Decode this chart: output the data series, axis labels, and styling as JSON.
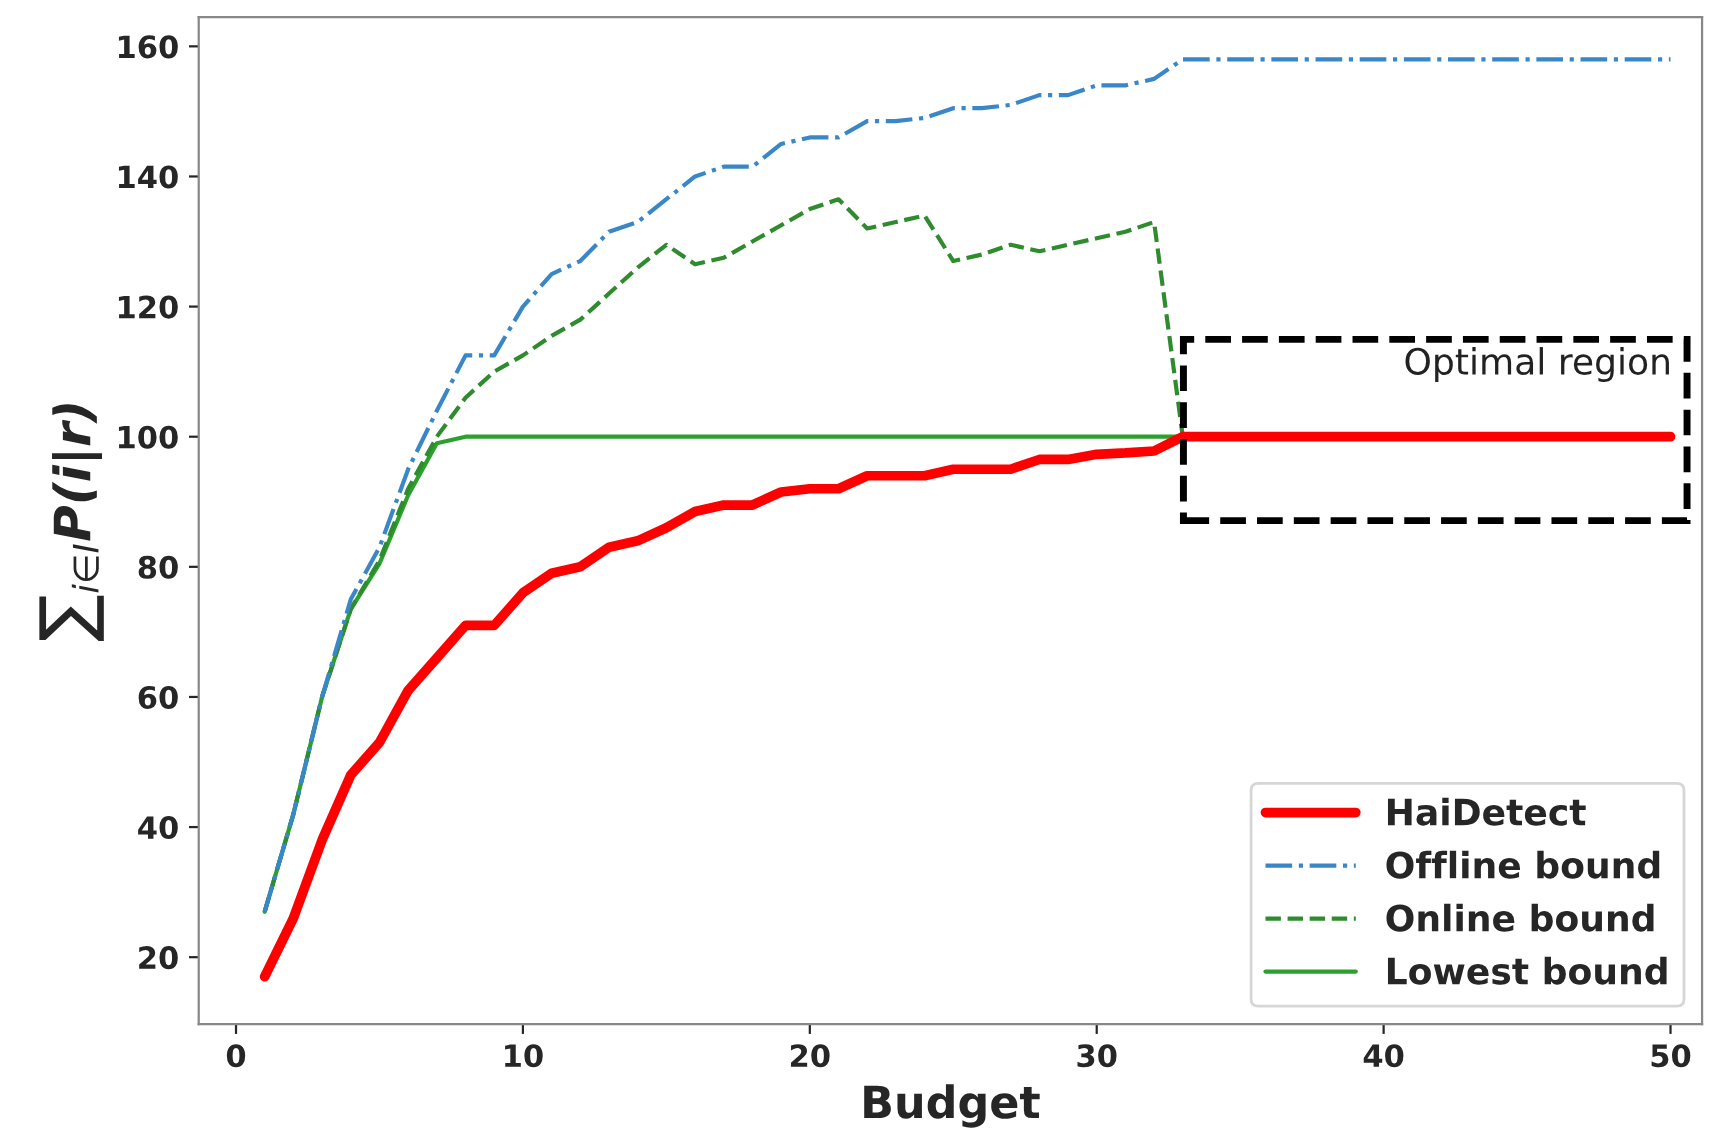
{
  "chart_data": {
    "type": "line",
    "xlabel": "Budget",
    "ylabel": "∑$_{i∈I}$P(i|r)",
    "x": [
      1,
      2,
      3,
      4,
      5,
      6,
      7,
      8,
      9,
      10,
      11,
      12,
      13,
      14,
      15,
      16,
      17,
      18,
      19,
      20,
      21,
      22,
      23,
      24,
      25,
      26,
      27,
      28,
      29,
      30,
      31,
      32,
      33,
      34,
      35,
      36,
      37,
      38,
      39,
      40,
      41,
      42,
      43,
      44,
      45,
      46,
      47,
      48,
      49,
      50
    ],
    "series": [
      {
        "name": "Offline bound",
        "color": "#3a87c8",
        "line_style": "dashdot",
        "values": [
          27,
          42,
          60,
          75,
          83,
          95,
          104,
          112.5,
          112.5,
          120,
          125,
          127,
          131.5,
          133,
          136.5,
          140,
          141.5,
          141.5,
          145,
          146,
          146,
          148.5,
          148.5,
          149,
          150.5,
          150.5,
          151,
          152.5,
          152.5,
          154,
          154,
          155,
          158,
          158,
          158,
          158,
          158,
          158,
          158,
          158,
          158,
          158,
          158,
          158,
          158,
          158,
          158,
          158,
          158,
          158
        ]
      },
      {
        "name": "Online bound",
        "color": "#2e8b2e",
        "line_style": "dashed",
        "values": [
          27,
          42,
          60,
          73.5,
          81,
          92,
          100,
          106,
          110,
          112.5,
          115.5,
          118,
          122,
          126,
          129.5,
          126.5,
          127.5,
          130,
          132.5,
          135,
          136.5,
          132,
          133,
          134,
          127,
          128,
          129.5,
          128.5,
          129.5,
          130.5,
          131.5,
          133,
          100,
          null,
          null,
          null,
          null,
          null,
          null,
          null,
          null,
          null,
          null,
          null,
          null,
          null,
          null,
          null,
          null,
          null
        ]
      },
      {
        "name": "Lowest bound",
        "color": "#2ca02c",
        "line_style": "solid",
        "values": [
          27,
          42,
          60,
          73.5,
          80.5,
          91,
          99,
          100,
          100,
          100,
          100,
          100,
          100,
          100,
          100,
          100,
          100,
          100,
          100,
          100,
          100,
          100,
          100,
          100,
          100,
          100,
          100,
          100,
          100,
          100,
          100,
          100,
          100,
          null,
          null,
          null,
          null,
          null,
          null,
          null,
          null,
          null,
          null,
          null,
          null,
          null,
          null,
          null,
          null,
          null
        ]
      },
      {
        "name": "HaiDetect",
        "color": "#ff0000",
        "line_style": "solid",
        "values": [
          17,
          26,
          38,
          48,
          53,
          61,
          66,
          71,
          71,
          76,
          79,
          80,
          83,
          84,
          86,
          88.5,
          89.5,
          89.5,
          91.5,
          92,
          92,
          94,
          94,
          94,
          95,
          95,
          95,
          96.5,
          96.5,
          97.3,
          97.5,
          97.8,
          100,
          100,
          100,
          100,
          100,
          100,
          100,
          100,
          100,
          100,
          100,
          100,
          100,
          100,
          100,
          100,
          100,
          100
        ]
      }
    ],
    "annotations": [
      "Optimal region"
    ],
    "xlim": [
      -1.3,
      51.1
    ],
    "xticks": [
      0,
      10,
      20,
      30,
      40,
      50
    ],
    "ylim": [
      9.7,
      164.5
    ],
    "yticks": [
      20,
      40,
      60,
      80,
      100,
      120,
      140,
      160
    ],
    "grid": false,
    "legend": "bottom right",
    "marker": "none"
  }
}
